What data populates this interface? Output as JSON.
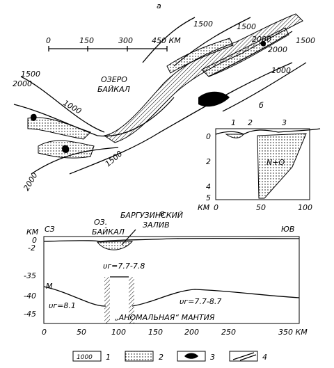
{
  "map": {
    "label": "а",
    "scale": {
      "ticks": [
        "0",
        "150",
        "300",
        "450 КМ"
      ]
    },
    "contours": [
      "1500",
      "1500",
      "2000",
      "2000",
      "1500",
      "1000",
      "1500",
      "2000",
      "1000",
      "1500",
      "2000"
    ],
    "lake": [
      "ОЗЕРО",
      "БАЙКАЛ"
    ]
  },
  "section_b": {
    "label": "б",
    "zones": [
      "1",
      "2",
      "3"
    ],
    "depth_ticks": [
      "0",
      "2",
      "4",
      "5"
    ],
    "depth_unit": "КМ",
    "distance_ticks": [
      "0",
      "50",
      "100"
    ],
    "fill_label": "N+Q"
  },
  "section_v": {
    "label": "в",
    "unit": "КМ",
    "left_end": "СЗ",
    "right_end": "ЮВ",
    "lake": [
      "ОЗ.",
      "БАЙКАЛ"
    ],
    "bay": [
      "БАРГУЗИНСКИЙ",
      "ЗАЛИВ"
    ],
    "depth_ticks": [
      "0",
      "-2",
      "-35",
      "-40",
      "-45"
    ],
    "moho": "M",
    "velocities": [
      "υг=7.7-7.8",
      "υг=8.1",
      "υг=7.7-8.7"
    ],
    "anomaly": "„АНОМАЛЬНАЯ“ МАНТИЯ",
    "distance_ticks": [
      "0",
      "50",
      "100",
      "150",
      "200",
      "250",
      "350 КМ"
    ]
  },
  "legend": {
    "contour_sample": "1000",
    "items": [
      "1",
      "2",
      "3",
      "4"
    ]
  }
}
